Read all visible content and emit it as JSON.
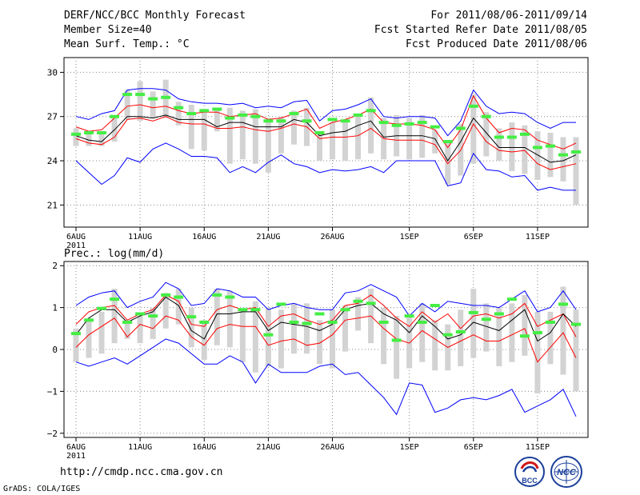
{
  "header": {
    "title": "DERF/NCC/BCC Monthly Forecast",
    "member_size": "Member Size=40",
    "variable": "Mean Surf. Temp.: °C",
    "period": "For 2011/08/06-2011/09/14",
    "started": "Fcst Started Refer Date 2011/08/05",
    "produced": "Fcst Produced Date 2011/08/06"
  },
  "footer": {
    "url": "http://cmdp.ncc.cma.gov.cn",
    "credit": "GrADS: COLA/IGES",
    "logo_bcc": "BCC",
    "logo_ncc": "NCC"
  },
  "colors": {
    "max_line": "#0000ff",
    "min_line": "#0000ff",
    "upper_line": "#ff0000",
    "lower_line": "#ff0000",
    "median_line": "#000000",
    "spread_bar": "#d3d3d3",
    "marker": "#44ee44"
  },
  "chart_data": [
    {
      "type": "line",
      "title": "Mean Surf. Temp.: °C",
      "ylim": [
        19.5,
        31
      ],
      "yticks": [
        21,
        24,
        27,
        30
      ],
      "ytick_labels": [
        "21",
        "24",
        "27",
        "30"
      ],
      "x_tick_labels": [
        {
          "day": 1,
          "label": "6AUG",
          "sub": "2011"
        },
        {
          "day": 6,
          "label": "11AUG"
        },
        {
          "day": 11,
          "label": "16AUG"
        },
        {
          "day": 16,
          "label": "21AUG"
        },
        {
          "day": 21,
          "label": "26AUG"
        },
        {
          "day": 27,
          "label": "1SEP"
        },
        {
          "day": 32,
          "label": "6SEP"
        },
        {
          "day": 37,
          "label": "11SEP"
        }
      ],
      "days": [
        1,
        2,
        3,
        4,
        5,
        6,
        7,
        8,
        9,
        10,
        11,
        12,
        13,
        14,
        15,
        16,
        17,
        18,
        19,
        20,
        21,
        22,
        23,
        24,
        25,
        26,
        27,
        28,
        29,
        30,
        31,
        32,
        33,
        34,
        35,
        36,
        37,
        38,
        39,
        40
      ],
      "max": [
        27.0,
        26.8,
        27.2,
        27.4,
        28.8,
        28.9,
        28.9,
        28.8,
        28.2,
        28.0,
        27.9,
        27.9,
        27.8,
        27.9,
        27.6,
        27.7,
        27.6,
        28.0,
        28.1,
        26.7,
        27.4,
        27.5,
        27.8,
        28.2,
        27.0,
        26.9,
        27.0,
        27.0,
        26.9,
        25.7,
        26.7,
        28.8,
        27.7,
        27.2,
        27.3,
        27.2,
        26.6,
        26.2,
        26.6,
        26.6
      ],
      "upper": [
        26.3,
        26.0,
        26.1,
        26.9,
        27.7,
        27.8,
        27.6,
        27.7,
        27.4,
        27.2,
        27.3,
        27.3,
        27.0,
        27.1,
        27.2,
        26.8,
        26.9,
        27.2,
        27.5,
        26.2,
        26.6,
        26.8,
        27.1,
        27.5,
        26.6,
        26.5,
        26.5,
        26.4,
        26.1,
        24.9,
        26.1,
        28.4,
        26.9,
        25.9,
        26.2,
        26.1,
        25.4,
        25.1,
        24.8,
        25.2
      ],
      "median": [
        25.7,
        25.4,
        25.3,
        26.1,
        27.0,
        27.0,
        26.9,
        27.1,
        26.8,
        26.8,
        26.8,
        26.3,
        26.6,
        26.6,
        26.3,
        26.3,
        26.3,
        26.8,
        26.6,
        25.7,
        25.9,
        26.0,
        26.4,
        26.7,
        25.6,
        25.7,
        25.7,
        25.7,
        25.5,
        24.0,
        25.3,
        26.9,
        25.9,
        24.9,
        24.9,
        24.9,
        24.4,
        23.9,
        24.0,
        24.4
      ],
      "lower": [
        25.5,
        25.2,
        25.1,
        25.6,
        26.8,
        26.9,
        26.7,
        27.0,
        26.6,
        26.5,
        26.5,
        26.2,
        26.2,
        26.3,
        26.1,
        26.0,
        26.2,
        26.5,
        26.3,
        25.5,
        25.6,
        25.6,
        25.7,
        26.2,
        25.5,
        25.4,
        25.4,
        25.4,
        25.1,
        23.8,
        24.7,
        26.5,
        25.3,
        24.7,
        24.6,
        24.7,
        23.8,
        23.4,
        23.6,
        23.8
      ],
      "min": [
        24.0,
        23.2,
        22.4,
        23.0,
        24.2,
        23.9,
        24.8,
        25.2,
        24.8,
        24.3,
        24.3,
        24.2,
        23.2,
        23.6,
        23.2,
        23.9,
        24.4,
        23.8,
        23.6,
        23.2,
        23.4,
        23.3,
        23.4,
        23.6,
        23.2,
        24.0,
        24.0,
        24.0,
        24.0,
        22.3,
        22.5,
        24.5,
        23.4,
        23.3,
        22.9,
        23.0,
        22.0,
        22.2,
        22.0,
        22.0
      ],
      "spread_top": [
        26.2,
        26.0,
        26.0,
        27.1,
        28.8,
        29.4,
        28.7,
        29.5,
        28.0,
        27.8,
        27.5,
        27.6,
        27.6,
        27.4,
        27.5,
        26.9,
        27.0,
        27.4,
        27.6,
        25.9,
        26.6,
        26.6,
        27.2,
        28.3,
        26.9,
        27.1,
        26.9,
        27.1,
        26.1,
        25.3,
        26.5,
        28.5,
        27.3,
        26.2,
        26.6,
        26.4,
        26.0,
        25.9,
        25.6,
        25.6
      ],
      "spread_bottom": [
        25.0,
        25.0,
        25.0,
        25.3,
        26.8,
        26.7,
        26.9,
        26.9,
        26.4,
        24.8,
        24.7,
        26.0,
        23.8,
        24.1,
        23.8,
        23.2,
        24.5,
        25.1,
        25.0,
        24.0,
        24.1,
        24.0,
        24.1,
        24.5,
        24.1,
        24.3,
        24.1,
        24.2,
        24.5,
        22.4,
        23.0,
        23.8,
        24.3,
        24.0,
        23.3,
        23.1,
        22.7,
        22.9,
        22.6,
        21.0
      ],
      "marker": [
        25.8,
        25.9,
        25.9,
        27.0,
        28.5,
        28.5,
        28.2,
        28.3,
        27.6,
        27.2,
        27.4,
        27.5,
        26.9,
        27.1,
        27.0,
        26.7,
        26.7,
        27.2,
        26.7,
        25.9,
        26.8,
        26.7,
        27.1,
        27.4,
        26.6,
        26.4,
        26.5,
        26.6,
        26.3,
        25.3,
        26.2,
        27.7,
        27.0,
        25.6,
        25.6,
        25.8,
        24.9,
        25.0,
        24.4,
        24.6
      ]
    },
    {
      "type": "line",
      "title": "Prec.: log(mm/d)",
      "ylim": [
        -2.1,
        2.1
      ],
      "yticks": [
        -2,
        -1,
        0,
        1,
        2
      ],
      "ytick_labels": [
        "−2",
        "−1",
        "0",
        "1",
        "2"
      ],
      "x_tick_labels": [
        {
          "day": 1,
          "label": "6AUG",
          "sub": "2011"
        },
        {
          "day": 6,
          "label": "11AUG"
        },
        {
          "day": 11,
          "label": "16AUG"
        },
        {
          "day": 16,
          "label": "21AUG"
        },
        {
          "day": 21,
          "label": "26AUG"
        },
        {
          "day": 27,
          "label": "1SEP"
        },
        {
          "day": 32,
          "label": "6SEP"
        },
        {
          "day": 37,
          "label": "11SEP"
        }
      ],
      "days": [
        1,
        2,
        3,
        4,
        5,
        6,
        7,
        8,
        9,
        10,
        11,
        12,
        13,
        14,
        15,
        16,
        17,
        18,
        19,
        20,
        21,
        22,
        23,
        24,
        25,
        26,
        27,
        28,
        29,
        30,
        31,
        32,
        33,
        34,
        35,
        36,
        37,
        38,
        39,
        40
      ],
      "max": [
        1.05,
        1.25,
        1.35,
        1.4,
        1.0,
        1.15,
        1.25,
        1.6,
        1.45,
        1.05,
        1.1,
        1.45,
        1.4,
        1.25,
        1.25,
        0.95,
        1.05,
        1.1,
        1.0,
        0.95,
        0.95,
        1.35,
        1.4,
        1.55,
        1.4,
        1.25,
        0.8,
        1.1,
        0.9,
        1.15,
        1.1,
        1.05,
        1.05,
        1.0,
        1.2,
        1.4,
        0.9,
        1.0,
        1.4,
        0.95
      ],
      "upper": [
        0.6,
        0.9,
        1.0,
        1.05,
        0.7,
        0.85,
        0.95,
        1.3,
        1.15,
        0.6,
        0.55,
        0.95,
        1.05,
        0.95,
        1.0,
        0.55,
        0.8,
        0.85,
        0.7,
        0.6,
        0.7,
        1.05,
        1.1,
        1.3,
        1.05,
        0.75,
        0.55,
        0.9,
        0.65,
        0.85,
        0.5,
        0.8,
        0.85,
        0.75,
        0.85,
        1.1,
        0.55,
        0.7,
        0.85,
        0.3
      ],
      "median": [
        0.35,
        0.75,
        0.95,
        0.95,
        0.65,
        0.8,
        0.9,
        1.25,
        1.05,
        0.45,
        0.25,
        0.85,
        0.85,
        0.9,
        0.9,
        0.45,
        0.65,
        0.6,
        0.55,
        0.45,
        0.6,
        0.95,
        1.05,
        1.1,
        0.85,
        0.7,
        0.4,
        0.8,
        0.55,
        0.25,
        0.35,
        0.65,
        0.55,
        0.45,
        0.7,
        0.95,
        0.2,
        0.4,
        0.85,
        0.55
      ],
      "lower": [
        0.05,
        0.35,
        0.55,
        0.75,
        0.3,
        0.6,
        0.5,
        0.8,
        0.7,
        0.3,
        0.1,
        0.5,
        0.6,
        0.55,
        0.55,
        0.1,
        0.2,
        0.25,
        0.1,
        0.15,
        0.35,
        0.7,
        0.75,
        0.8,
        0.5,
        0.25,
        0.15,
        0.45,
        0.25,
        0.05,
        0.2,
        0.35,
        0.2,
        0.2,
        0.35,
        0.5,
        -0.3,
        0.05,
        0.4,
        -0.2
      ],
      "min": [
        -0.3,
        -0.4,
        -0.3,
        -0.2,
        -0.35,
        -0.15,
        0.05,
        0.25,
        0.15,
        -0.1,
        -0.35,
        -0.35,
        -0.15,
        -0.3,
        -0.8,
        -0.35,
        -0.55,
        -0.55,
        -0.55,
        -0.4,
        -0.35,
        -0.6,
        -0.55,
        -0.85,
        -1.15,
        -1.55,
        -0.8,
        -0.85,
        -1.5,
        -1.4,
        -1.2,
        -1.15,
        -1.2,
        -1.1,
        -0.95,
        -1.5,
        -1.35,
        -1.2,
        -0.95,
        -1.6
      ],
      "spread_top": [
        0.5,
        0.75,
        0.9,
        1.45,
        0.7,
        0.8,
        1.0,
        1.35,
        1.45,
        1.0,
        0.7,
        1.45,
        1.4,
        0.95,
        1.15,
        1.0,
        0.95,
        1.1,
        1.1,
        0.7,
        0.95,
        1.05,
        1.25,
        1.45,
        1.0,
        0.8,
        0.8,
        1.1,
        0.7,
        0.6,
        0.95,
        1.45,
        1.1,
        1.0,
        1.1,
        1.3,
        0.9,
        0.9,
        1.5,
        0.95
      ],
      "spread_bottom": [
        -0.3,
        -0.2,
        -0.1,
        0.15,
        0.25,
        0.15,
        0.25,
        0.5,
        0.6,
        0.05,
        -0.25,
        0.1,
        0.05,
        -0.3,
        -0.55,
        -0.4,
        -0.45,
        -0.1,
        -0.1,
        -0.35,
        -0.45,
        -0.05,
        0.45,
        0.15,
        -0.35,
        -0.7,
        -0.45,
        -0.3,
        -0.5,
        -0.5,
        -0.4,
        -0.2,
        -0.05,
        -0.4,
        -0.3,
        -0.15,
        -1.05,
        -0.35,
        -0.6,
        -1.0
      ],
      "marker": [
        0.38,
        0.7,
        0.98,
        1.2,
        0.65,
        0.85,
        0.8,
        1.3,
        1.25,
        0.78,
        0.65,
        1.3,
        1.25,
        0.95,
        0.95,
        0.35,
        1.08,
        0.65,
        0.62,
        0.85,
        0.65,
        0.95,
        1.15,
        1.1,
        0.65,
        0.22,
        0.8,
        0.65,
        1.05,
        0.35,
        0.42,
        0.88,
        0.72,
        0.85,
        1.2,
        0.32,
        0.4,
        0.65,
        1.08,
        0.6
      ]
    }
  ]
}
